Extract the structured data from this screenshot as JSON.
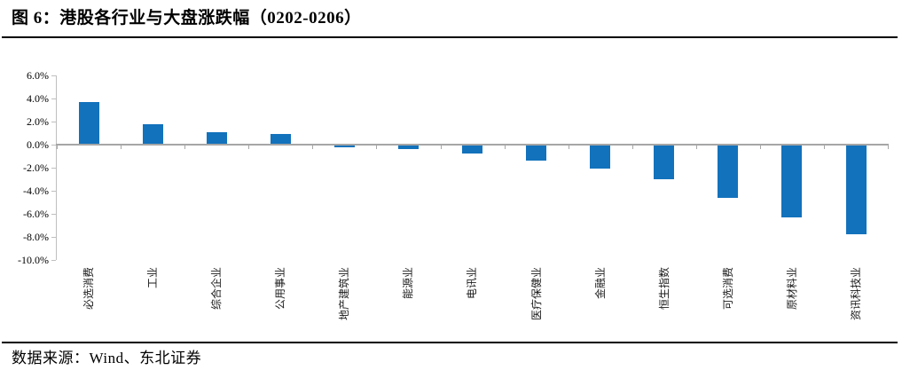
{
  "figure": {
    "title": "图 6：港股各行业与大盘涨跌幅（0202-0206）",
    "source": "数据来源：Wind、东北证券"
  },
  "chart_data": {
    "type": "bar",
    "title": "港股各行业与大盘涨跌幅（0202-0206）",
    "categories": [
      "必选消费",
      "工业",
      "综合企业",
      "公用事业",
      "地产建筑业",
      "能源业",
      "电讯业",
      "医疗保健业",
      "金融业",
      "恒生指数",
      "可选消费",
      "原材料业",
      "资讯科技业"
    ],
    "values": [
      3.7,
      1.8,
      1.1,
      0.9,
      -0.2,
      -0.4,
      -0.8,
      -1.4,
      -2.1,
      -3.0,
      -4.6,
      -6.3,
      -7.8
    ],
    "unit": "%",
    "xlabel": "",
    "ylabel": "",
    "ylim": [
      -10,
      6
    ],
    "ytick_step": 2,
    "ytick_labels": [
      "6.0%",
      "4.0%",
      "2.0%",
      "0.0%",
      "-2.0%",
      "-4.0%",
      "-6.0%",
      "-8.0%",
      "-10.0%"
    ],
    "grid": false,
    "legend": false,
    "colors": {
      "bar": "#1272BC",
      "zero_axis": "#A6A6A6",
      "y_axis": "#BFBFBF"
    }
  }
}
